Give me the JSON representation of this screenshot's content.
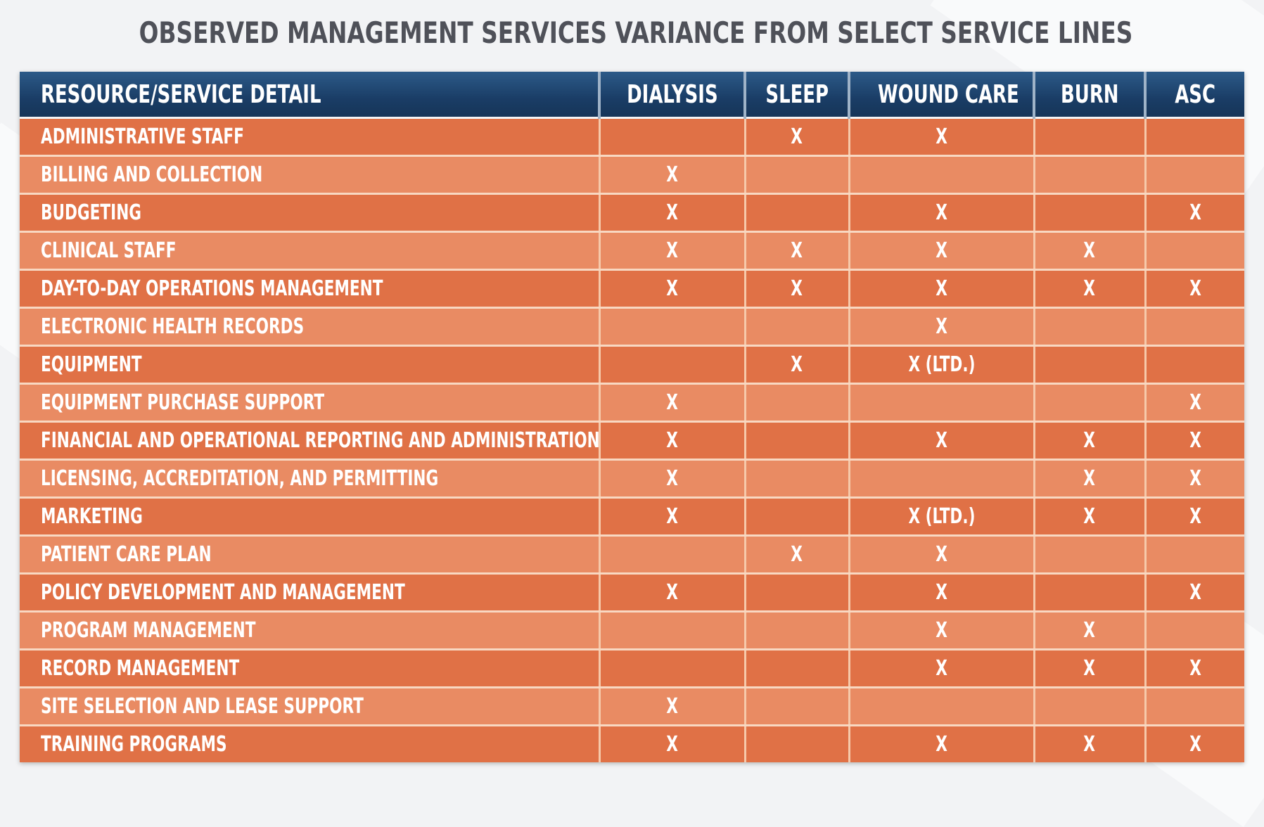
{
  "title": "OBSERVED MANAGEMENT SERVICES VARIANCE FROM SELECT SERVICE LINES",
  "colors": {
    "header_bg": "#1a3d66",
    "row_dark": "#e07146",
    "row_light": "#e98b63",
    "title_text": "#4f5159"
  },
  "table": {
    "headers": [
      "RESOURCE/SERVICE DETAIL",
      "DIALYSIS",
      "SLEEP",
      "WOUND CARE",
      "BURN",
      "ASC"
    ],
    "rows": [
      [
        "ADMINISTRATIVE STAFF",
        "",
        "X",
        "X",
        "",
        ""
      ],
      [
        "BILLING AND COLLECTION",
        "X",
        "",
        "",
        "",
        ""
      ],
      [
        "BUDGETING",
        "X",
        "",
        "X",
        "",
        "X"
      ],
      [
        "CLINICAL STAFF",
        "X",
        "X",
        "X",
        "X",
        ""
      ],
      [
        "DAY-TO-DAY OPERATIONS MANAGEMENT",
        "X",
        "X",
        "X",
        "X",
        "X"
      ],
      [
        "ELECTRONIC HEALTH RECORDS",
        "",
        "",
        "X",
        "",
        ""
      ],
      [
        "EQUIPMENT",
        "",
        "X",
        "X (LTD.)",
        "",
        ""
      ],
      [
        "EQUIPMENT PURCHASE SUPPORT",
        "X",
        "",
        "",
        "",
        "X"
      ],
      [
        "FINANCIAL AND OPERATIONAL REPORTING AND ADMINISTRATION",
        "X",
        "",
        "X",
        "X",
        "X"
      ],
      [
        "LICENSING, ACCREDITATION, AND PERMITTING",
        "X",
        "",
        "",
        "X",
        "X"
      ],
      [
        "MARKETING",
        "X",
        "",
        "X (LTD.)",
        "X",
        "X"
      ],
      [
        "PATIENT CARE PLAN",
        "",
        "X",
        "X",
        "",
        ""
      ],
      [
        "POLICY DEVELOPMENT AND MANAGEMENT",
        "X",
        "",
        "X",
        "",
        "X"
      ],
      [
        "PROGRAM MANAGEMENT",
        "",
        "",
        "X",
        "X",
        ""
      ],
      [
        "RECORD MANAGEMENT",
        "",
        "",
        "X",
        "X",
        "X"
      ],
      [
        "SITE SELECTION AND LEASE SUPPORT",
        "X",
        "",
        "",
        "",
        ""
      ],
      [
        "TRAINING PROGRAMS",
        "X",
        "",
        "X",
        "X",
        "X"
      ]
    ]
  }
}
